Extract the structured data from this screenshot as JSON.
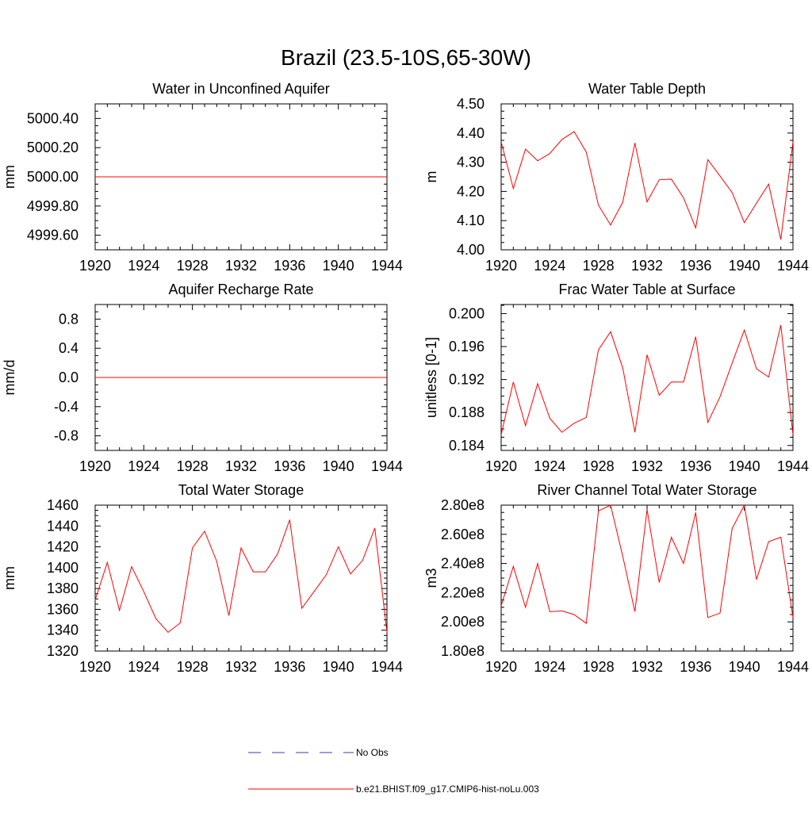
{
  "figure": {
    "title": "Brazil (23.5-10S,65-30W)"
  },
  "legend": {
    "entries": [
      {
        "label": "No Obs",
        "color": "#3b3bb0",
        "style": "dashed"
      },
      {
        "label": "b.e21.BHIST.f09_g17.CMIP6-hist-noLu.003",
        "color": "#ff0000",
        "style": "solid"
      }
    ]
  },
  "chart_data": [
    {
      "type": "line",
      "title": "Water in Unconfined Aquifer",
      "xlabel": "",
      "ylabel": "mm",
      "xlim": [
        1920,
        1944
      ],
      "ylim": [
        4999.5,
        5000.5
      ],
      "xticks": [
        1920,
        1924,
        1928,
        1932,
        1936,
        1940,
        1944
      ],
      "xtick_labels": [
        "1920",
        "1924",
        "1928",
        "1932",
        "1936",
        "1940",
        "1944"
      ],
      "yticks": [
        4999.6,
        4999.8,
        5000.0,
        5000.2,
        5000.4
      ],
      "ytick_labels": [
        "4999.60",
        "4999.80",
        "5000.00",
        "5000.20",
        "5000.40"
      ],
      "x": [
        1920,
        1921,
        1922,
        1923,
        1924,
        1925,
        1926,
        1927,
        1928,
        1929,
        1930,
        1931,
        1932,
        1933,
        1934,
        1935,
        1936,
        1937,
        1938,
        1939,
        1940,
        1941,
        1942,
        1943,
        1944
      ],
      "series": [
        {
          "color": "#ff0000",
          "values": [
            5000,
            5000,
            5000,
            5000,
            5000,
            5000,
            5000,
            5000,
            5000,
            5000,
            5000,
            5000,
            5000,
            5000,
            5000,
            5000,
            5000,
            5000,
            5000,
            5000,
            5000,
            5000,
            5000,
            5000,
            5000
          ]
        }
      ]
    },
    {
      "type": "line",
      "title": "Water Table Depth",
      "xlabel": "",
      "ylabel": "m",
      "xlim": [
        1920,
        1944
      ],
      "ylim": [
        4.0,
        4.5
      ],
      "xticks": [
        1920,
        1924,
        1928,
        1932,
        1936,
        1940,
        1944
      ],
      "xtick_labels": [
        "1920",
        "1924",
        "1928",
        "1932",
        "1936",
        "1940",
        "1944"
      ],
      "yticks": [
        4.0,
        4.1,
        4.2,
        4.3,
        4.4,
        4.5
      ],
      "ytick_labels": [
        "4.00",
        "4.10",
        "4.20",
        "4.30",
        "4.40",
        "4.50"
      ],
      "x": [
        1920,
        1921,
        1922,
        1923,
        1924,
        1925,
        1926,
        1927,
        1928,
        1929,
        1930,
        1931,
        1932,
        1933,
        1934,
        1935,
        1936,
        1937,
        1938,
        1939,
        1940,
        1941,
        1942,
        1943,
        1944
      ],
      "series": [
        {
          "color": "#ff0000",
          "values": [
            4.37,
            4.21,
            4.345,
            4.305,
            4.33,
            4.378,
            4.405,
            4.335,
            4.153,
            4.085,
            4.163,
            4.366,
            4.164,
            4.24,
            4.242,
            4.178,
            4.075,
            4.309,
            4.253,
            4.196,
            4.093,
            4.16,
            4.225,
            4.035,
            4.37
          ]
        }
      ]
    },
    {
      "type": "line",
      "title": "Aquifer Recharge Rate",
      "xlabel": "",
      "ylabel": "mm/d",
      "xlim": [
        1920,
        1944
      ],
      "ylim": [
        -1.0,
        1.0
      ],
      "xticks": [
        1920,
        1924,
        1928,
        1932,
        1936,
        1940,
        1944
      ],
      "xtick_labels": [
        "1920",
        "1924",
        "1928",
        "1932",
        "1936",
        "1940",
        "1944"
      ],
      "yticks": [
        -0.8,
        -0.4,
        0.0,
        0.4,
        0.8
      ],
      "ytick_labels": [
        "-0.8",
        "-0.4",
        "0.0",
        "0.4",
        "0.8"
      ],
      "x": [
        1920,
        1921,
        1922,
        1923,
        1924,
        1925,
        1926,
        1927,
        1928,
        1929,
        1930,
        1931,
        1932,
        1933,
        1934,
        1935,
        1936,
        1937,
        1938,
        1939,
        1940,
        1941,
        1942,
        1943,
        1944
      ],
      "series": [
        {
          "color": "#ff0000",
          "values": [
            0,
            0,
            0,
            0,
            0,
            0,
            0,
            0,
            0,
            0,
            0,
            0,
            0,
            0,
            0,
            0,
            0,
            0,
            0,
            0,
            0,
            0,
            0,
            0,
            0
          ]
        }
      ]
    },
    {
      "type": "line",
      "title": "Frac Water Table at Surface",
      "xlabel": "",
      "ylabel": "unitless [0-1]",
      "xlim": [
        1920,
        1944
      ],
      "ylim": [
        0.1834,
        0.2011
      ],
      "xticks": [
        1920,
        1924,
        1928,
        1932,
        1936,
        1940,
        1944
      ],
      "xtick_labels": [
        "1920",
        "1924",
        "1928",
        "1932",
        "1936",
        "1940",
        "1944"
      ],
      "yticks": [
        0.184,
        0.188,
        0.192,
        0.196,
        0.2
      ],
      "ytick_labels": [
        "0.184",
        "0.188",
        "0.192",
        "0.196",
        "0.200"
      ],
      "x": [
        1920,
        1921,
        1922,
        1923,
        1924,
        1925,
        1926,
        1927,
        1928,
        1929,
        1930,
        1931,
        1932,
        1933,
        1934,
        1935,
        1936,
        1937,
        1938,
        1939,
        1940,
        1941,
        1942,
        1943,
        1944
      ],
      "series": [
        {
          "color": "#ff0000",
          "values": [
            0.1853,
            0.1917,
            0.1864,
            0.1915,
            0.1873,
            0.1856,
            0.1867,
            0.1874,
            0.1956,
            0.1978,
            0.1934,
            0.1856,
            0.195,
            0.1901,
            0.1917,
            0.1917,
            0.1972,
            0.1868,
            0.1899,
            0.194,
            0.198,
            0.1933,
            0.1923,
            0.1986,
            0.1853
          ]
        }
      ]
    },
    {
      "type": "line",
      "title": "Total Water Storage",
      "xlabel": "",
      "ylabel": "mm",
      "xlim": [
        1920,
        1944
      ],
      "ylim": [
        1320,
        1460
      ],
      "xticks": [
        1920,
        1924,
        1928,
        1932,
        1936,
        1940,
        1944
      ],
      "xtick_labels": [
        "1920",
        "1924",
        "1928",
        "1932",
        "1936",
        "1940",
        "1944"
      ],
      "yticks": [
        1320,
        1340,
        1360,
        1380,
        1400,
        1420,
        1440,
        1460
      ],
      "ytick_labels": [
        "1320",
        "1340",
        "1360",
        "1380",
        "1400",
        "1420",
        "1440",
        "1460"
      ],
      "x": [
        1920,
        1921,
        1922,
        1923,
        1924,
        1925,
        1926,
        1927,
        1928,
        1929,
        1930,
        1931,
        1932,
        1933,
        1934,
        1935,
        1936,
        1937,
        1938,
        1939,
        1940,
        1941,
        1942,
        1943,
        1944
      ],
      "series": [
        {
          "color": "#ff0000",
          "values": [
            1369,
            1405,
            1359,
            1401,
            1377,
            1351,
            1338,
            1347,
            1419,
            1435,
            1406,
            1354,
            1419,
            1396,
            1396,
            1413,
            1446,
            1361,
            1377,
            1393,
            1420,
            1394,
            1407,
            1438,
            1338
          ]
        }
      ]
    },
    {
      "type": "line",
      "title": "River Channel Total Water Storage",
      "xlabel": "",
      "ylabel": "m3",
      "xlim": [
        1920,
        1944
      ],
      "ylim": [
        180000000,
        280000000
      ],
      "xticks": [
        1920,
        1924,
        1928,
        1932,
        1936,
        1940,
        1944
      ],
      "xtick_labels": [
        "1920",
        "1924",
        "1928",
        "1932",
        "1936",
        "1940",
        "1944"
      ],
      "yticks": [
        180000000,
        200000000,
        220000000,
        240000000,
        260000000,
        280000000
      ],
      "ytick_labels": [
        "1.80e8",
        "2.00e8",
        "2.20e8",
        "2.40e8",
        "2.60e8",
        "2.80e8"
      ],
      "x": [
        1920,
        1921,
        1922,
        1923,
        1924,
        1925,
        1926,
        1927,
        1928,
        1929,
        1930,
        1931,
        1932,
        1933,
        1934,
        1935,
        1936,
        1937,
        1938,
        1939,
        1940,
        1941,
        1942,
        1943,
        1944
      ],
      "series": [
        {
          "color": "#ff0000",
          "values": [
            211000000,
            238000000,
            210000000,
            240000000,
            207000000,
            207500000,
            205000000,
            199000000,
            276000000,
            280000000,
            245000000,
            207000000,
            277000000,
            227000000,
            258000000,
            240000000,
            275000000,
            203000000,
            206000000,
            264000000,
            280000000,
            229000000,
            255000000,
            258000000,
            203000000
          ]
        }
      ]
    }
  ]
}
